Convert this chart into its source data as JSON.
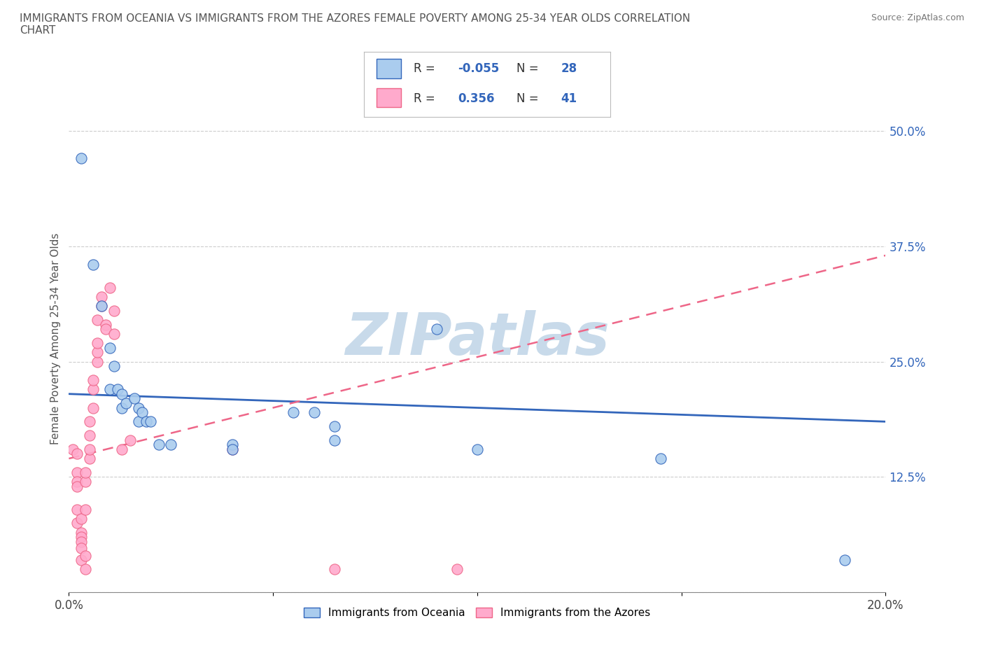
{
  "title": "IMMIGRANTS FROM OCEANIA VS IMMIGRANTS FROM THE AZORES FEMALE POVERTY AMONG 25-34 YEAR OLDS CORRELATION\nCHART",
  "source": "Source: ZipAtlas.com",
  "ylabel": "Female Poverty Among 25-34 Year Olds",
  "xlim": [
    0.0,
    0.2
  ],
  "ylim": [
    0.0,
    0.55
  ],
  "yticks": [
    0.0,
    0.125,
    0.25,
    0.375,
    0.5
  ],
  "ytick_labels": [
    "",
    "12.5%",
    "25.0%",
    "37.5%",
    "50.0%"
  ],
  "xticks": [
    0.0,
    0.05,
    0.1,
    0.15,
    0.2
  ],
  "xtick_labels": [
    "0.0%",
    "",
    "",
    "",
    "20.0%"
  ],
  "background_color": "#ffffff",
  "watermark": "ZIPatlas",
  "watermark_color": "#c8daea",
  "grid_color": "#cccccc",
  "oceania_color": "#aaccee",
  "azores_color": "#ffaacc",
  "oceania_line_color": "#3366bb",
  "azores_line_color": "#ee6688",
  "R_oceania": -0.055,
  "N_oceania": 28,
  "R_azores": 0.356,
  "N_azores": 41,
  "legend_label_oceania": "Immigrants from Oceania",
  "legend_label_azores": "Immigrants from the Azores",
  "oceania_scatter": [
    [
      0.003,
      0.47
    ],
    [
      0.006,
      0.355
    ],
    [
      0.008,
      0.31
    ],
    [
      0.01,
      0.265
    ],
    [
      0.01,
      0.22
    ],
    [
      0.011,
      0.245
    ],
    [
      0.012,
      0.22
    ],
    [
      0.013,
      0.215
    ],
    [
      0.013,
      0.2
    ],
    [
      0.014,
      0.205
    ],
    [
      0.016,
      0.21
    ],
    [
      0.017,
      0.2
    ],
    [
      0.017,
      0.185
    ],
    [
      0.018,
      0.195
    ],
    [
      0.019,
      0.185
    ],
    [
      0.02,
      0.185
    ],
    [
      0.022,
      0.16
    ],
    [
      0.025,
      0.16
    ],
    [
      0.04,
      0.16
    ],
    [
      0.04,
      0.155
    ],
    [
      0.055,
      0.195
    ],
    [
      0.06,
      0.195
    ],
    [
      0.065,
      0.18
    ],
    [
      0.065,
      0.165
    ],
    [
      0.09,
      0.285
    ],
    [
      0.1,
      0.155
    ],
    [
      0.145,
      0.145
    ],
    [
      0.19,
      0.035
    ]
  ],
  "azores_scatter": [
    [
      0.001,
      0.155
    ],
    [
      0.002,
      0.15
    ],
    [
      0.002,
      0.13
    ],
    [
      0.002,
      0.12
    ],
    [
      0.002,
      0.115
    ],
    [
      0.002,
      0.09
    ],
    [
      0.002,
      0.075
    ],
    [
      0.003,
      0.08
    ],
    [
      0.003,
      0.065
    ],
    [
      0.003,
      0.06
    ],
    [
      0.003,
      0.055
    ],
    [
      0.003,
      0.048
    ],
    [
      0.003,
      0.035
    ],
    [
      0.004,
      0.04
    ],
    [
      0.004,
      0.025
    ],
    [
      0.004,
      0.09
    ],
    [
      0.004,
      0.12
    ],
    [
      0.004,
      0.13
    ],
    [
      0.005,
      0.145
    ],
    [
      0.005,
      0.155
    ],
    [
      0.005,
      0.17
    ],
    [
      0.005,
      0.185
    ],
    [
      0.006,
      0.2
    ],
    [
      0.006,
      0.22
    ],
    [
      0.006,
      0.23
    ],
    [
      0.007,
      0.25
    ],
    [
      0.007,
      0.26
    ],
    [
      0.007,
      0.27
    ],
    [
      0.007,
      0.295
    ],
    [
      0.008,
      0.31
    ],
    [
      0.008,
      0.32
    ],
    [
      0.009,
      0.29
    ],
    [
      0.009,
      0.285
    ],
    [
      0.01,
      0.33
    ],
    [
      0.011,
      0.305
    ],
    [
      0.011,
      0.28
    ],
    [
      0.013,
      0.155
    ],
    [
      0.015,
      0.165
    ],
    [
      0.04,
      0.155
    ],
    [
      0.065,
      0.025
    ],
    [
      0.095,
      0.025
    ]
  ]
}
